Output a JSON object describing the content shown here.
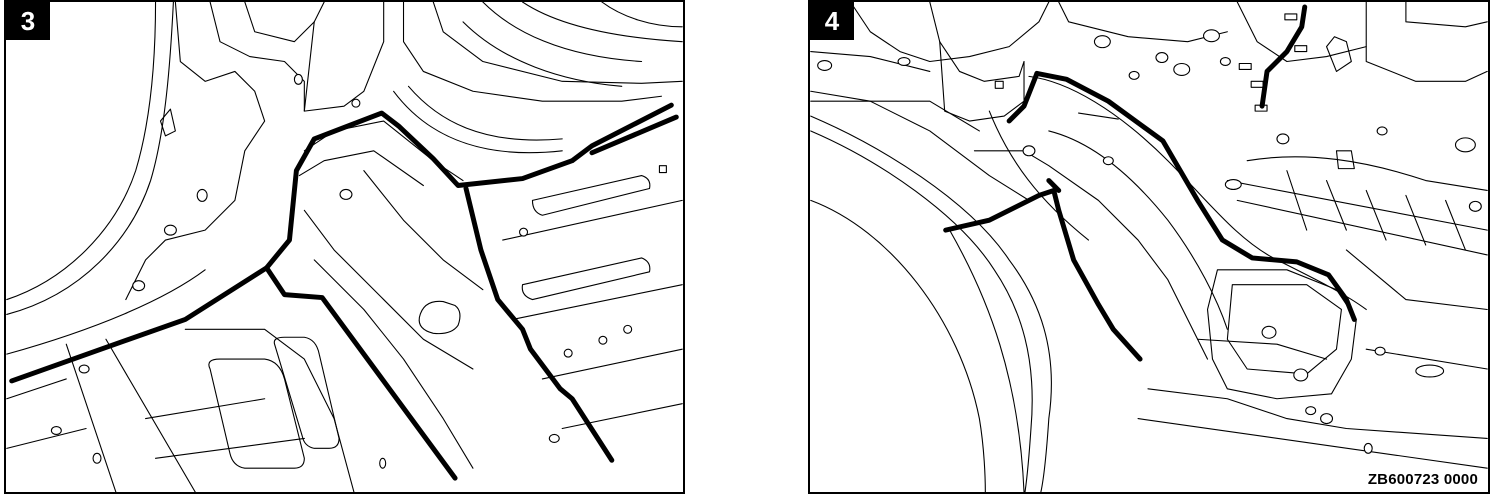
{
  "panels": [
    {
      "step": "3"
    },
    {
      "step": "4"
    }
  ],
  "reference_code": "ZB600723 0000"
}
